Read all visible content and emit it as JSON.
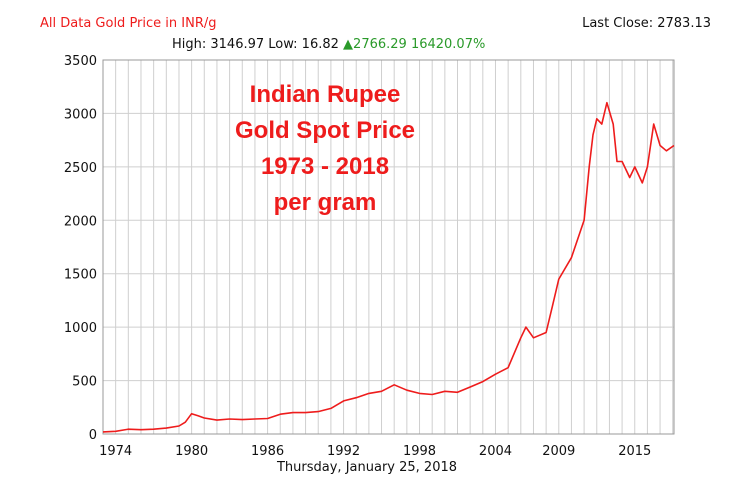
{
  "header": {
    "title": "All Data Gold Price in INR/g",
    "last_close": "Last Close: 2783.13",
    "high_low": "High: 3146.97 Low: 16.82",
    "change_arrow": "▲",
    "change": "2766.29 16420.07%",
    "change_color": "#2a9a2a",
    "title_color": "#ee1c1c"
  },
  "date_label": "Thursday, January 25, 2018",
  "chart_data": {
    "type": "line",
    "series": [
      {
        "color": "#ee1c1c",
        "x": [
          1973.0,
          1974.0,
          1975.0,
          1976.0,
          1977.0,
          1978.0,
          1979.0,
          1979.5,
          1980.0,
          1980.5,
          1981.0,
          1982.0,
          1983.0,
          1984.0,
          1985.0,
          1986.0,
          1987.0,
          1988.0,
          1989.0,
          1990.0,
          1991.0,
          1992.0,
          1993.0,
          1994.0,
          1995.0,
          1996.0,
          1997.0,
          1998.0,
          1999.0,
          2000.0,
          2001.0,
          2002.0,
          2003.0,
          2004.0,
          2005.0,
          2006.0,
          2006.4,
          2007.0,
          2008.0,
          2008.5,
          2009.0,
          2010.0,
          2011.0,
          2011.4,
          2011.7,
          2012.0,
          2012.4,
          2012.8,
          2013.3,
          2013.6,
          2014.0,
          2014.6,
          2015.0,
          2015.6,
          2016.0,
          2016.5,
          2017.0,
          2017.5,
          2018.1
        ],
        "y": [
          20,
          25,
          45,
          40,
          45,
          55,
          75,
          110,
          190,
          170,
          150,
          130,
          140,
          135,
          140,
          145,
          185,
          200,
          200,
          210,
          240,
          310,
          340,
          380,
          400,
          460,
          410,
          380,
          370,
          400,
          390,
          440,
          490,
          560,
          620,
          900,
          1000,
          900,
          950,
          1200,
          1450,
          1650,
          2000,
          2500,
          2800,
          2950,
          2900,
          3100,
          2900,
          2550,
          2550,
          2400,
          2500,
          2350,
          2500,
          2900,
          2700,
          2650,
          2700
        ]
      }
    ],
    "xlim": [
      1973.0,
      2018.1
    ],
    "ylim": [
      0,
      3500
    ],
    "yticks": [
      0,
      500,
      1000,
      1500,
      2000,
      2500,
      3000,
      3500
    ],
    "xticks": [
      1974,
      1980,
      1986,
      1992,
      1998,
      2004,
      2009,
      2015
    ],
    "annotation_lines": [
      "Indian Rupee",
      "Gold Spot Price",
      "1973 - 2018",
      "per gram"
    ],
    "grid": true,
    "legend": false
  }
}
